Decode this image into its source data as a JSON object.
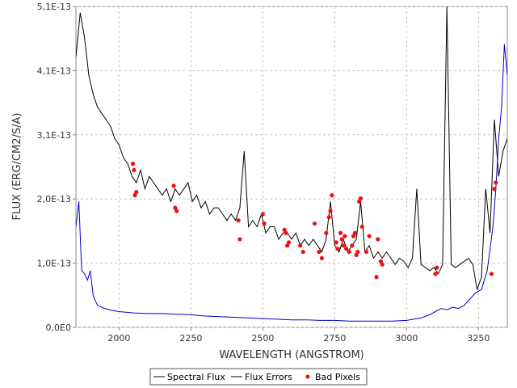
{
  "chart_data": {
    "type": "line",
    "xlabel": "WAVELENGTH (ANGSTROM)",
    "ylabel": "FLUX (ERG/CM2/S/A)",
    "xlim": [
      1850,
      3350
    ],
    "ylim": [
      0,
      5.1e-13
    ],
    "x_ticks": [
      2000,
      2250,
      2500,
      2750,
      3000,
      3250
    ],
    "x_tick_labels": [
      "2000",
      "2250",
      "2500",
      "2750",
      "3000",
      "3250"
    ],
    "y_ticks": [
      0,
      1.02e-13,
      2.04e-13,
      3.06e-13,
      4.08e-13,
      5.1e-13
    ],
    "y_tick_labels": [
      "0,0E0",
      "1,0E-13",
      "2,0E-13",
      "3,1E-13",
      "4,1E-13",
      "5,1E-13"
    ],
    "grid": true,
    "legend_position": "bottom",
    "series": [
      {
        "name": "Spectral Flux",
        "color": "#000000",
        "x": [
          1850,
          1865,
          1880,
          1895,
          1910,
          1925,
          1940,
          1955,
          1970,
          1985,
          2000,
          2015,
          2030,
          2045,
          2060,
          2075,
          2090,
          2105,
          2120,
          2135,
          2150,
          2165,
          2180,
          2195,
          2210,
          2225,
          2240,
          2255,
          2270,
          2285,
          2300,
          2315,
          2330,
          2345,
          2360,
          2375,
          2390,
          2405,
          2420,
          2435,
          2450,
          2465,
          2480,
          2495,
          2510,
          2525,
          2540,
          2555,
          2570,
          2585,
          2600,
          2615,
          2630,
          2645,
          2660,
          2675,
          2690,
          2705,
          2720,
          2735,
          2750,
          2765,
          2780,
          2795,
          2810,
          2825,
          2840,
          2855,
          2870,
          2885,
          2900,
          2915,
          2930,
          2945,
          2960,
          2975,
          2990,
          3005,
          3020,
          3035,
          3050,
          3065,
          3080,
          3095,
          3110,
          3125,
          3140,
          3155,
          3170,
          3185,
          3200,
          3215,
          3230,
          3245,
          3260,
          3275,
          3290,
          3305,
          3320,
          3335,
          3350
        ],
        "values": [
          4.3e-13,
          5e-13,
          4.6e-13,
          4e-13,
          3.7e-13,
          3.5e-13,
          3.4e-13,
          3.3e-13,
          3.2e-13,
          3e-13,
          2.9e-13,
          2.7e-13,
          2.6e-13,
          2.4e-13,
          2.3e-13,
          2.5e-13,
          2.2e-13,
          2.4e-13,
          2.3e-13,
          2.2e-13,
          2.1e-13,
          2.2e-13,
          2e-13,
          2.2e-13,
          2.1e-13,
          2.2e-13,
          2.3e-13,
          2e-13,
          2.1e-13,
          1.9e-13,
          2e-13,
          1.8e-13,
          1.9e-13,
          1.9e-13,
          1.8e-13,
          1.7e-13,
          1.8e-13,
          1.7e-13,
          1.9e-13,
          2.8e-13,
          1.6e-13,
          1.7e-13,
          1.6e-13,
          1.8e-13,
          1.5e-13,
          1.6e-13,
          1.6e-13,
          1.4e-13,
          1.5e-13,
          1.5e-13,
          1.4e-13,
          1.5e-13,
          1.3e-13,
          1.4e-13,
          1.3e-13,
          1.4e-13,
          1.3e-13,
          1.2e-13,
          1.4e-13,
          2e-13,
          1.3e-13,
          1.2e-13,
          1.4e-13,
          1.2e-13,
          1.3e-13,
          1.4e-13,
          2e-13,
          1.2e-13,
          1.3e-13,
          1.1e-13,
          1.2e-13,
          1.1e-13,
          1.2e-13,
          1.1e-13,
          1e-13,
          1.1e-13,
          1.05e-13,
          9.5e-14,
          1.1e-13,
          2.2e-13,
          1e-13,
          9.5e-14,
          9e-14,
          9.5e-14,
          8.5e-14,
          1e-13,
          5.1e-13,
          1e-13,
          9.5e-14,
          1e-13,
          1.05e-13,
          1.1e-13,
          1e-13,
          6e-14,
          8e-14,
          2.2e-13,
          1.5e-13,
          3.3e-13,
          2.4e-13,
          2.8e-13,
          3e-13
        ]
      },
      {
        "name": "Flux Errors",
        "color": "#0000cc",
        "x": [
          1850,
          1860,
          1870,
          1880,
          1890,
          1900,
          1910,
          1925,
          1950,
          1975,
          2000,
          2050,
          2100,
          2150,
          2200,
          2250,
          2300,
          2350,
          2400,
          2450,
          2500,
          2550,
          2600,
          2650,
          2700,
          2750,
          2800,
          2850,
          2900,
          2950,
          3000,
          3050,
          3080,
          3100,
          3120,
          3140,
          3160,
          3180,
          3200,
          3220,
          3240,
          3260,
          3280,
          3300,
          3310,
          3320,
          3330,
          3340,
          3350
        ],
        "values": [
          1.6e-13,
          2e-13,
          9e-14,
          8.5e-14,
          7.5e-14,
          9e-14,
          5e-14,
          3.5e-14,
          3e-14,
          2.7e-14,
          2.5e-14,
          2.3e-14,
          2.2e-14,
          2.2e-14,
          2.1e-14,
          2e-14,
          1.8e-14,
          1.7e-14,
          1.6e-14,
          1.5e-14,
          1.4e-14,
          1.3e-14,
          1.2e-14,
          1.2e-14,
          1.1e-14,
          1.1e-14,
          1e-14,
          1e-14,
          1e-14,
          1e-14,
          1.1e-14,
          1.5e-14,
          2e-14,
          2.5e-14,
          3e-14,
          2.8e-14,
          3.2e-14,
          3e-14,
          3.5e-14,
          4.5e-14,
          5.5e-14,
          6e-14,
          9e-14,
          1.6e-13,
          2.2e-13,
          3e-13,
          3.5e-13,
          4.5e-13,
          4e-13
        ]
      },
      {
        "name": "Bad Pixels",
        "color": "#ee1111",
        "type": "scatter",
        "x": [
          2048,
          2052,
          2055,
          2060,
          2190,
          2195,
          2200,
          2415,
          2420,
          2500,
          2505,
          2575,
          2580,
          2585,
          2590,
          2630,
          2640,
          2680,
          2695,
          2705,
          2720,
          2730,
          2735,
          2740,
          2755,
          2760,
          2770,
          2775,
          2780,
          2785,
          2790,
          2800,
          2810,
          2815,
          2820,
          2825,
          2830,
          2835,
          2840,
          2845,
          2860,
          2870,
          2895,
          2900,
          2910,
          2915,
          3100,
          3105,
          3295,
          3305,
          3310
        ],
        "values": [
          2.6e-13,
          2.5e-13,
          2.1e-13,
          2.15e-13,
          2.25e-13,
          1.9e-13,
          1.85e-13,
          1.7e-13,
          1.4e-13,
          1.8e-13,
          1.65e-13,
          1.55e-13,
          1.5e-13,
          1.3e-13,
          1.35e-13,
          1.3e-13,
          1.2e-13,
          1.65e-13,
          1.2e-13,
          1.1e-13,
          1.5e-13,
          1.75e-13,
          1.85e-13,
          2.1e-13,
          1.35e-13,
          1.25e-13,
          1.5e-13,
          1.4e-13,
          1.3e-13,
          1.45e-13,
          1.25e-13,
          1.2e-13,
          1.3e-13,
          1.45e-13,
          1.5e-13,
          1.15e-13,
          1.2e-13,
          2e-13,
          2.05e-13,
          1.6e-13,
          1.2e-13,
          1.45e-13,
          8e-14,
          1.4e-13,
          1.05e-13,
          1e-13,
          8.5e-14,
          9.5e-14,
          8.5e-14,
          2.2e-13,
          2.3e-13
        ]
      }
    ]
  }
}
